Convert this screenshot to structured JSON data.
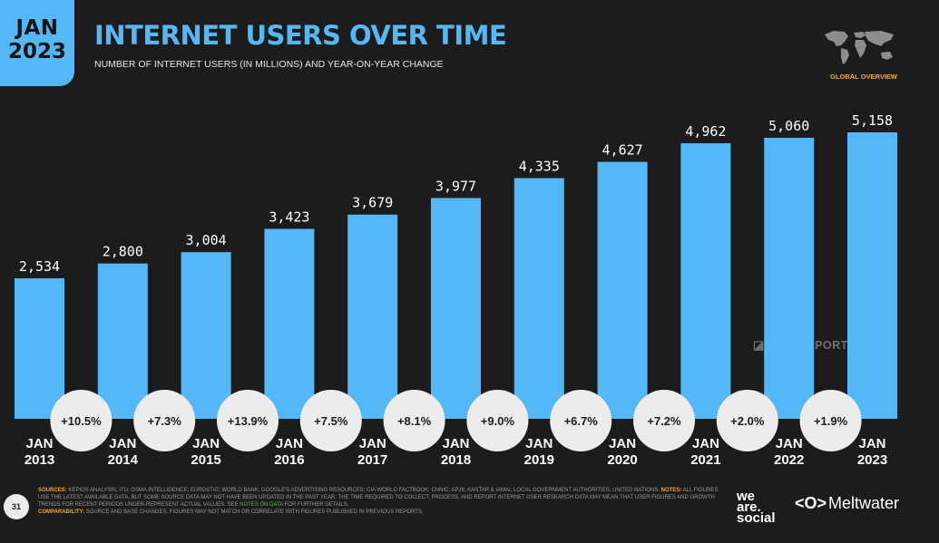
{
  "header": {
    "badge_month": "JAN",
    "badge_year": "2023",
    "title": "INTERNET USERS OVER TIME",
    "subtitle": "NUMBER OF INTERNET USERS (IN MILLIONS) AND YEAR-ON-YEAR CHANGE",
    "section_label": "GLOBAL OVERVIEW",
    "map_icon": "world-map-icon"
  },
  "chart_data": {
    "type": "bar",
    "title": "INTERNET USERS OVER TIME",
    "subtitle": "NUMBER OF INTERNET USERS (IN MILLIONS) AND YEAR-ON-YEAR CHANGE",
    "categories": [
      {
        "month": "JAN",
        "year": "2013"
      },
      {
        "month": "JAN",
        "year": "2014"
      },
      {
        "month": "JAN",
        "year": "2015"
      },
      {
        "month": "JAN",
        "year": "2016"
      },
      {
        "month": "JAN",
        "year": "2017"
      },
      {
        "month": "JAN",
        "year": "2018"
      },
      {
        "month": "JAN",
        "year": "2019"
      },
      {
        "month": "JAN",
        "year": "2020"
      },
      {
        "month": "JAN",
        "year": "2021"
      },
      {
        "month": "JAN",
        "year": "2022"
      },
      {
        "month": "JAN",
        "year": "2023"
      }
    ],
    "values": [
      2534,
      2800,
      3004,
      3423,
      3679,
      3977,
      4335,
      4627,
      4962,
      5060,
      5158
    ],
    "value_labels": [
      "2,534",
      "2,800",
      "3,004",
      "3,423",
      "3,679",
      "3,977",
      "4,335",
      "4,627",
      "4,962",
      "5,060",
      "5,158"
    ],
    "changes": [
      "+10.5%",
      "+7.3%",
      "+13.9%",
      "+7.5%",
      "+8.1%",
      "+9.0%",
      "+6.7%",
      "+7.2%",
      "+2.0%",
      "+1.9%"
    ],
    "ylim": [
      0,
      5500
    ],
    "grid": false,
    "legend": "none",
    "bar_color": "#55b8f6",
    "background_color": "#1c1c1c"
  },
  "watermark": "DATAREPORTAL",
  "footer": {
    "page_number": "31",
    "sources_label": "SOURCES:",
    "sources_text": "KEPIOS ANALYSIS; ITU; GSMA INTELLIGENCE; EUROSTAT; WORLD BANK; GOOGLE'S ADVERTISING RESOURCES; CIA WORLD FACTBOOK; CNNIC; APJII; KANTAR & IAMAI; LOCAL GOVERNMENT AUTHORITIES; UNITED NATIONS.",
    "notes_label": "NOTES:",
    "notes_text": "ALL FIGURES USE THE LATEST AVAILABLE DATA, BUT SOME SOURCE DATA MAY NOT HAVE BEEN UPDATED IN THE PAST YEAR. THE TIME REQUIRED TO COLLECT, PROCESS, AND REPORT INTERNET USER RESEARCH DATA MAY MEAN THAT USER FIGURES AND GROWTH TRENDS FOR RECENT PERIODS UNDER-REPRESENT ACTUAL VALUES. SEE",
    "notes_link": "NOTES ON DATA",
    "notes_tail": "FOR FURTHER DETAILS.",
    "comparability_label": "COMPARABILITY:",
    "comparability_text": "SOURCE AND BASE CHANGES. FIGURES MAY NOT MATCH OR CORRELATE WITH FIGURES PUBLISHED IN PREVIOUS REPORTS.",
    "logo_we": "we",
    "logo_are": "are.",
    "logo_social": "social",
    "logo_meltwater_icon": "<O>",
    "logo_meltwater": "Meltwater"
  },
  "colors": {
    "accent": "#55b8f6",
    "highlight": "#f5a623",
    "link": "#3fbf3f"
  }
}
